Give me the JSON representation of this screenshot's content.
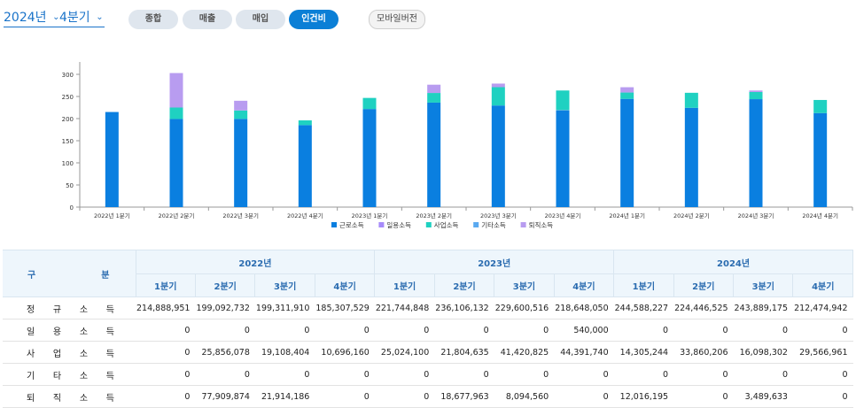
{
  "filters": {
    "year": "2024년",
    "quarter": "4분기"
  },
  "tabs": [
    {
      "label": "종합",
      "active": false
    },
    {
      "label": "매출",
      "active": false
    },
    {
      "label": "매입",
      "active": false
    },
    {
      "label": "인건비",
      "active": true
    }
  ],
  "mobile_button": "모바일버전",
  "colors": {
    "labor": "#0a7fe0",
    "daily": "#a78bfa",
    "business": "#1fd1c1",
    "other": "#5aa9f0",
    "retire": "#b89cf0"
  },
  "chart_data": {
    "type": "bar",
    "stacked": true,
    "categories": [
      "2022년 1분기",
      "2022년 2분기",
      "2022년 3분기",
      "2022년 4분기",
      "2023년 1분기",
      "2023년 2분기",
      "2023년 3분기",
      "2023년 4분기",
      "2024년 1분기",
      "2024년 2분기",
      "2024년 3분기",
      "2024년 4분기"
    ],
    "ylim": [
      0,
      320
    ],
    "yticks": [
      0,
      50,
      100,
      150,
      200,
      250,
      300
    ],
    "legend_position": "bottom",
    "series": [
      {
        "name": "근로소득",
        "color": "#0a7fe0",
        "values": [
          214.9,
          199.1,
          199.3,
          185.3,
          221.7,
          236.1,
          229.6,
          218.6,
          244.6,
          224.4,
          243.9,
          212.5
        ]
      },
      {
        "name": "일용소득",
        "color": "#a78bfa",
        "values": [
          0,
          0,
          0,
          0,
          0,
          0,
          0,
          0.5,
          0,
          0,
          0,
          0
        ]
      },
      {
        "name": "사업소득",
        "color": "#1fd1c1",
        "values": [
          0,
          25.9,
          19.1,
          10.7,
          25.0,
          21.8,
          41.4,
          44.4,
          14.3,
          33.9,
          16.1,
          29.6
        ]
      },
      {
        "name": "기타소득",
        "color": "#5aa9f0",
        "values": [
          0,
          0,
          0,
          0,
          0,
          0,
          0,
          0,
          0,
          0,
          0,
          0
        ]
      },
      {
        "name": "퇴직소득",
        "color": "#b89cf0",
        "values": [
          0,
          77.9,
          21.9,
          0,
          0,
          18.7,
          8.1,
          0,
          12.0,
          0,
          3.5,
          0
        ]
      }
    ]
  },
  "table": {
    "header_gu": "구",
    "header_bun": "분",
    "years": [
      "2022년",
      "2023년",
      "2024년"
    ],
    "quarters": [
      "1분기",
      "2분기",
      "3분기",
      "4분기",
      "1분기",
      "2분기",
      "3분기",
      "4분기",
      "1분기",
      "2분기",
      "3분기",
      "4분기"
    ],
    "rows": [
      {
        "label": [
          "정",
          "규",
          "소",
          "득"
        ],
        "values": [
          "214,888,951",
          "199,092,732",
          "199,311,910",
          "185,307,529",
          "221,744,848",
          "236,106,132",
          "229,600,516",
          "218,648,050",
          "244,588,227",
          "224,446,525",
          "243,889,175",
          "212,474,942"
        ]
      },
      {
        "label": [
          "일",
          "용",
          "소",
          "득"
        ],
        "values": [
          "0",
          "0",
          "0",
          "0",
          "0",
          "0",
          "0",
          "540,000",
          "0",
          "0",
          "0",
          "0"
        ]
      },
      {
        "label": [
          "사",
          "업",
          "소",
          "득"
        ],
        "values": [
          "0",
          "25,856,078",
          "19,108,404",
          "10,696,160",
          "25,024,100",
          "21,804,635",
          "41,420,825",
          "44,391,740",
          "14,305,244",
          "33,860,206",
          "16,098,302",
          "29,566,961"
        ]
      },
      {
        "label": [
          "기",
          "타",
          "소",
          "득"
        ],
        "values": [
          "0",
          "0",
          "0",
          "0",
          "0",
          "0",
          "0",
          "0",
          "0",
          "0",
          "0",
          "0"
        ]
      },
      {
        "label": [
          "퇴",
          "직",
          "소",
          "득"
        ],
        "values": [
          "0",
          "77,909,874",
          "21,914,186",
          "0",
          "0",
          "18,677,963",
          "8,094,560",
          "0",
          "12,016,195",
          "0",
          "3,489,633",
          "0"
        ]
      }
    ]
  }
}
